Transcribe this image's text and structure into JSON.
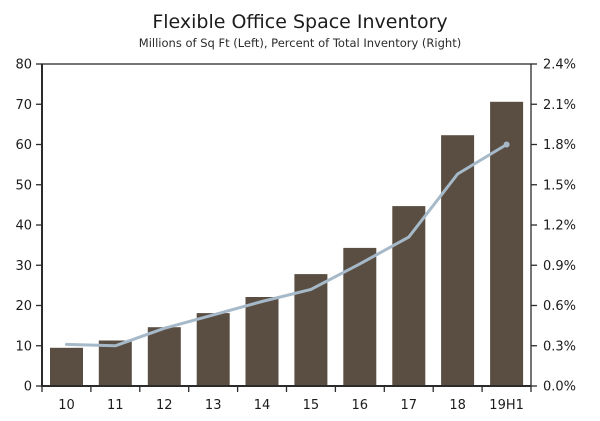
{
  "chart_data": {
    "type": "bar+line",
    "title": "Flexible Office Space Inventory",
    "subtitle": "Millions of Sq Ft (Left), Percent of Total Inventory (Right)",
    "categories": [
      "10",
      "11",
      "12",
      "13",
      "14",
      "15",
      "16",
      "17",
      "18",
      "19H1"
    ],
    "series": [
      {
        "name": "flexible-office-inventory-sqft-millions",
        "type": "bar",
        "axis": "left",
        "color": "#5A4E43",
        "values": [
          9.5,
          11.3,
          14.6,
          18.1,
          22.1,
          27.8,
          34.3,
          44.7,
          62.3,
          70.6
        ]
      },
      {
        "name": "percent-of-total-inventory",
        "type": "line",
        "axis": "right",
        "color": "#A6B9C9",
        "values": [
          0.31,
          0.3,
          0.43,
          0.53,
          0.63,
          0.72,
          0.91,
          1.11,
          1.58,
          1.8
        ]
      }
    ],
    "left_axis": {
      "min": 0,
      "max": 80,
      "step": 10,
      "tick_labels": [
        "0",
        "10",
        "20",
        "30",
        "40",
        "50",
        "60",
        "70",
        "80"
      ]
    },
    "right_axis": {
      "min": 0,
      "max": 2.4,
      "step": 0.3,
      "tick_labels": [
        "0.0%",
        "0.3%",
        "0.6%",
        "0.9%",
        "1.2%",
        "1.5%",
        "1.8%",
        "2.1%",
        "2.4%"
      ]
    },
    "grid": false,
    "legend": "none",
    "colors": {
      "axis": "#2b2b2b",
      "text": "#1c1c1c",
      "background": "#ffffff"
    }
  }
}
